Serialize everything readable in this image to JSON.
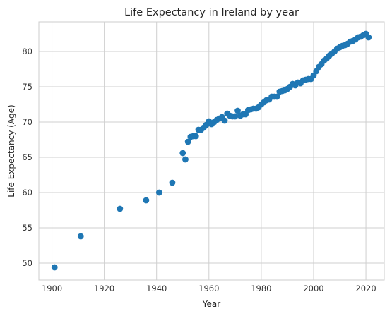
{
  "chart_data": {
    "type": "scatter",
    "title": "Life Expectancy in Ireland by year",
    "xlabel": "Year",
    "ylabel": "Life Expectancy (Age)",
    "xlim": [
      1895,
      2027
    ],
    "ylim": [
      47.6,
      84.2
    ],
    "xticks": [
      1900,
      1920,
      1940,
      1960,
      1980,
      2000,
      2020
    ],
    "yticks": [
      50,
      55,
      60,
      65,
      70,
      75,
      80
    ],
    "grid": true,
    "marker_color": "#1f77b4",
    "series": [
      {
        "x": [
          1901,
          1911,
          1926,
          1936,
          1941,
          1946,
          1950,
          1951,
          1952,
          1953,
          1954,
          1955,
          1956,
          1957,
          1958,
          1959,
          1960,
          1961,
          1962,
          1963,
          1964,
          1965,
          1966,
          1967,
          1968,
          1969,
          1970,
          1971,
          1972,
          1973,
          1974,
          1975,
          1976,
          1977,
          1978,
          1979,
          1980,
          1981,
          1982,
          1983,
          1984,
          1985,
          1986,
          1987,
          1988,
          1989,
          1990,
          1991,
          1992,
          1993,
          1994,
          1995,
          1996,
          1997,
          1998,
          1999,
          2000,
          2001,
          2002,
          2003,
          2004,
          2005,
          2006,
          2007,
          2008,
          2009,
          2010,
          2011,
          2012,
          2013,
          2014,
          2015,
          2016,
          2017,
          2018,
          2019,
          2020,
          2021
        ],
        "y": [
          49.4,
          53.8,
          57.7,
          58.9,
          60.0,
          61.4,
          65.6,
          64.7,
          67.2,
          67.9,
          68.0,
          68.0,
          68.9,
          68.9,
          69.2,
          69.6,
          70.1,
          69.7,
          70.0,
          70.3,
          70.5,
          70.7,
          70.2,
          71.2,
          70.9,
          70.8,
          70.8,
          71.6,
          70.9,
          71.1,
          71.1,
          71.7,
          71.8,
          71.9,
          71.9,
          72.1,
          72.5,
          72.8,
          73.1,
          73.2,
          73.6,
          73.6,
          73.6,
          74.3,
          74.4,
          74.5,
          74.7,
          75.0,
          75.4,
          75.2,
          75.6,
          75.5,
          75.9,
          76.0,
          76.1,
          76.1,
          76.6,
          77.2,
          77.8,
          78.2,
          78.7,
          79.0,
          79.4,
          79.7,
          80.0,
          80.4,
          80.6,
          80.8,
          80.9,
          81.1,
          81.4,
          81.5,
          81.7,
          82.0,
          82.1,
          82.3,
          82.5,
          82.0
        ]
      }
    ]
  }
}
